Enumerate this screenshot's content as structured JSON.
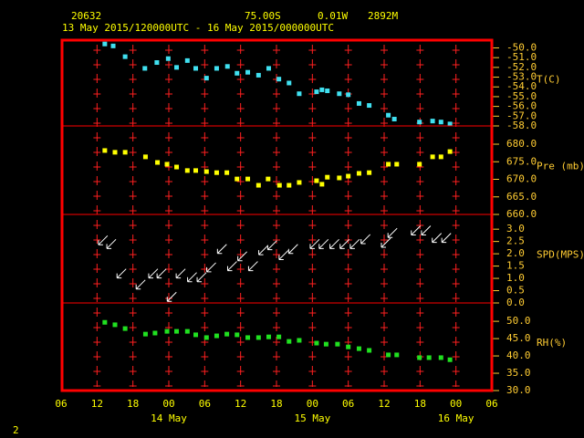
{
  "header": {
    "station": "20632",
    "latitude": "75.00S",
    "longitude": "0.01W",
    "elevation": "2892M",
    "period": "13 May 2015/120000UTC - 16 May 2015/000000UTC"
  },
  "page_number": "2",
  "chart_data": [
    {
      "type": "scatter",
      "y_label": "T(C)",
      "color": "#40e0f0",
      "x": [
        13.3,
        14.7,
        16.7,
        20,
        22,
        23.9,
        25.3,
        27.1,
        28.5,
        30.3,
        32,
        33.8,
        35.4,
        37.2,
        39,
        40.7,
        42.4,
        44.1,
        45.8,
        48.7,
        49.6,
        50.5,
        52.5,
        54,
        55.8,
        57.5,
        60.7,
        61.7,
        65.9,
        68.1,
        69.5,
        71
      ],
      "values": [
        -49.6,
        -49.8,
        -50.9,
        -52.1,
        -51.5,
        -51.1,
        -52.0,
        -51.3,
        -52.1,
        -53.1,
        -52.1,
        -51.9,
        -52.6,
        -52.5,
        -52.8,
        -52.1,
        -53.2,
        -53.6,
        -54.7,
        -54.5,
        -54.3,
        -54.4,
        -54.7,
        -54.8,
        -55.7,
        -55.9,
        -56.9,
        -57.3,
        -57.6,
        -57.5,
        -57.6,
        -57.8
      ],
      "ylim": [
        -58,
        -49.3
      ],
      "yticks": [
        {
          "value": -50,
          "label": "-50.0"
        },
        {
          "value": -51,
          "label": "-51.0"
        },
        {
          "value": -52,
          "label": "-52.0"
        },
        {
          "value": -53,
          "label": "-53.0"
        },
        {
          "value": -54,
          "label": "-54.0"
        },
        {
          "value": -55,
          "label": "-55.0"
        },
        {
          "value": -56,
          "label": "-56.0"
        },
        {
          "value": -57,
          "label": "-57.0"
        },
        {
          "value": -58,
          "label": "-58.0"
        }
      ]
    },
    {
      "type": "scatter",
      "y_label": "Pre (mb)",
      "color": "#ffff00",
      "x": [
        13.3,
        15.0,
        16.7,
        20.1,
        22.1,
        23.7,
        25.3,
        27.1,
        28.5,
        30.3,
        32.0,
        33.7,
        35.4,
        37.2,
        39.0,
        40.6,
        42.5,
        44.1,
        45.8,
        48.7,
        49.6,
        50.5,
        52.5,
        54.0,
        55.8,
        57.5,
        60.7,
        62.1,
        65.9,
        68.1,
        69.5,
        71.0
      ],
      "values": [
        678.2,
        677.7,
        677.7,
        676.4,
        674.8,
        674.3,
        673.5,
        672.5,
        672.5,
        672.2,
        671.9,
        671.9,
        670.1,
        670.1,
        668.3,
        670.1,
        668.3,
        668.3,
        669.1,
        669.6,
        668.6,
        670.6,
        670.4,
        670.9,
        671.7,
        671.9,
        674.3,
        674.3,
        674.3,
        676.4,
        676.4,
        677.9
      ],
      "ylim": [
        660,
        685.2
      ],
      "yticks": [
        {
          "value": 680,
          "label": "680.0"
        },
        {
          "value": 675,
          "label": "675.0"
        },
        {
          "value": 670,
          "label": "670.0"
        },
        {
          "value": 665,
          "label": "665.0"
        },
        {
          "value": 660,
          "label": "660.0"
        }
      ]
    },
    {
      "type": "arrow",
      "y_label": "SPD(MPS)",
      "color": "#ffffff",
      "x": [
        13.0,
        14.4,
        16.1,
        19.3,
        21.4,
        22.8,
        24.5,
        26.0,
        27.9,
        29.5,
        31.1,
        32.9,
        34.6,
        36.3,
        38.1,
        39.8,
        41.3,
        43.2,
        44.8,
        48.4,
        49.9,
        51.7,
        53.4,
        55.1,
        56.9,
        60.3,
        61.4,
        65.3,
        67.0,
        68.8,
        70.4
      ],
      "values": [
        2.55,
        2.4,
        1.2,
        0.75,
        1.2,
        1.2,
        0.25,
        1.2,
        1.05,
        1.05,
        1.45,
        2.2,
        1.5,
        1.9,
        1.5,
        2.15,
        2.35,
        1.95,
        2.2,
        2.4,
        2.4,
        2.4,
        2.4,
        2.4,
        2.6,
        2.45,
        2.85,
        2.95,
        2.95,
        2.65,
        2.65
      ],
      "ylim": [
        0,
        3.6
      ],
      "yticks": [
        {
          "value": 3,
          "label": "3.0"
        },
        2.5,
        {
          "value": 2,
          "label": "2.0"
        },
        1.5,
        {
          "value": 1,
          "label": "1.0"
        },
        0.5,
        {
          "value": 0,
          "label": "0.0"
        }
      ]
    },
    {
      "type": "scatter",
      "y_label": "RH(%)",
      "color": "#20e020",
      "x": [
        13.3,
        15.0,
        16.7,
        20.1,
        21.7,
        23.7,
        25.3,
        27.1,
        28.5,
        30.3,
        32.0,
        33.7,
        35.4,
        37.2,
        39.0,
        40.7,
        42.4,
        44.1,
        45.8,
        48.7,
        50.3,
        52.2,
        54.0,
        55.8,
        57.5,
        60.7,
        62.1,
        65.9,
        67.5,
        69.5,
        71.0
      ],
      "values": [
        49.7,
        49.0,
        47.9,
        46.3,
        46.6,
        47.1,
        47.1,
        47.1,
        46.1,
        45.3,
        45.8,
        46.3,
        46.1,
        45.3,
        45.3,
        45.5,
        45.5,
        44.2,
        44.5,
        43.7,
        43.4,
        43.4,
        42.6,
        42.1,
        41.6,
        40.3,
        40.3,
        39.5,
        39.5,
        39.5,
        38.9
      ],
      "ylim": [
        30,
        55.3
      ],
      "yticks": [
        {
          "value": 50,
          "label": "50.0"
        },
        {
          "value": 45,
          "label": "45.0"
        },
        {
          "value": 40,
          "label": "40.0"
        },
        {
          "value": 35,
          "label": "35.0"
        },
        {
          "value": 30,
          "label": "30.0"
        }
      ],
      "xlim": [
        6,
        78
      ],
      "xticks": [
        {
          "value": 6,
          "label": "06"
        },
        12,
        18,
        {
          "value": 24,
          "label": "00"
        },
        {
          "value": 30,
          "label": "06"
        },
        {
          "value": 36,
          "label": "12"
        },
        {
          "value": 42,
          "label": "18"
        },
        {
          "value": 48,
          "label": "00"
        },
        {
          "value": 54,
          "label": "06"
        },
        {
          "value": 60,
          "label": "12"
        },
        {
          "value": 66,
          "label": "18"
        },
        {
          "value": 72,
          "label": "00"
        },
        {
          "value": 78,
          "label": "06"
        }
      ],
      "x_date_labels": [
        {
          "value": 24,
          "label": "14 May"
        },
        {
          "value": 48,
          "label": "15 May"
        },
        {
          "value": 72,
          "label": "16 May"
        }
      ]
    }
  ]
}
